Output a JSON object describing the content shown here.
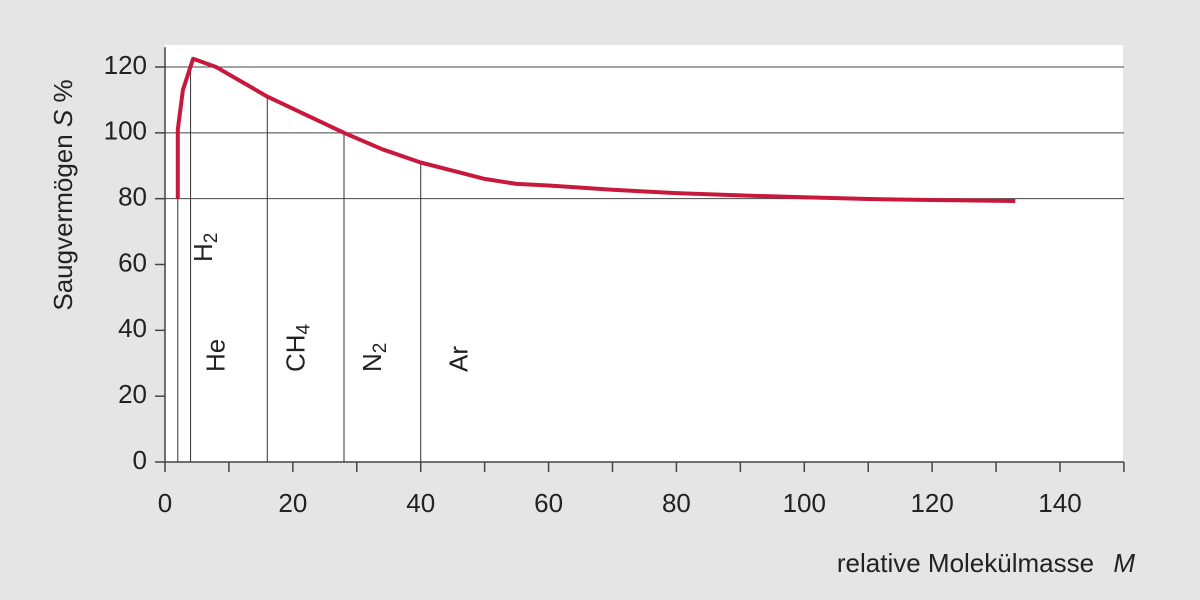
{
  "chart_data": {
    "type": "line",
    "ylabel": {
      "text": "Saugvermögen",
      "symbol": "S",
      "unit": "%"
    },
    "xlabel": {
      "text": "relative Molekülmasse",
      "symbol": "M"
    },
    "x": [
      2,
      2,
      2.8,
      4.4,
      8,
      16,
      22,
      28,
      34,
      40,
      46,
      50,
      55,
      60,
      70,
      80,
      90,
      100,
      110,
      120,
      133
    ],
    "series": [
      {
        "name": "S",
        "color": "#c8193c",
        "values": [
          80,
          101,
          113,
          122.5,
          120,
          111,
          105.5,
          100,
          95,
          91,
          88,
          86,
          84.5,
          84,
          82.7,
          81.7,
          81,
          80.4,
          79.9,
          79.6,
          79.3
        ]
      }
    ],
    "markers": [
      {
        "label": "H",
        "sub": "2",
        "x": 2
      },
      {
        "label": "He",
        "x": 4
      },
      {
        "label": "CH",
        "sub": "4",
        "x": 16
      },
      {
        "label": "N",
        "sub": "2",
        "x": 28
      },
      {
        "label": "Ar",
        "x": 40
      }
    ],
    "xlim": [
      0,
      150
    ],
    "ylim": [
      0,
      126
    ],
    "xticks": [
      0,
      20,
      40,
      60,
      80,
      100,
      120,
      140
    ],
    "xminorticks": [
      10,
      30,
      50,
      70,
      90,
      110,
      130,
      150
    ],
    "yticks": [
      0,
      20,
      40,
      60,
      80,
      100,
      120
    ],
    "gridlines": [
      80,
      100,
      120
    ]
  }
}
